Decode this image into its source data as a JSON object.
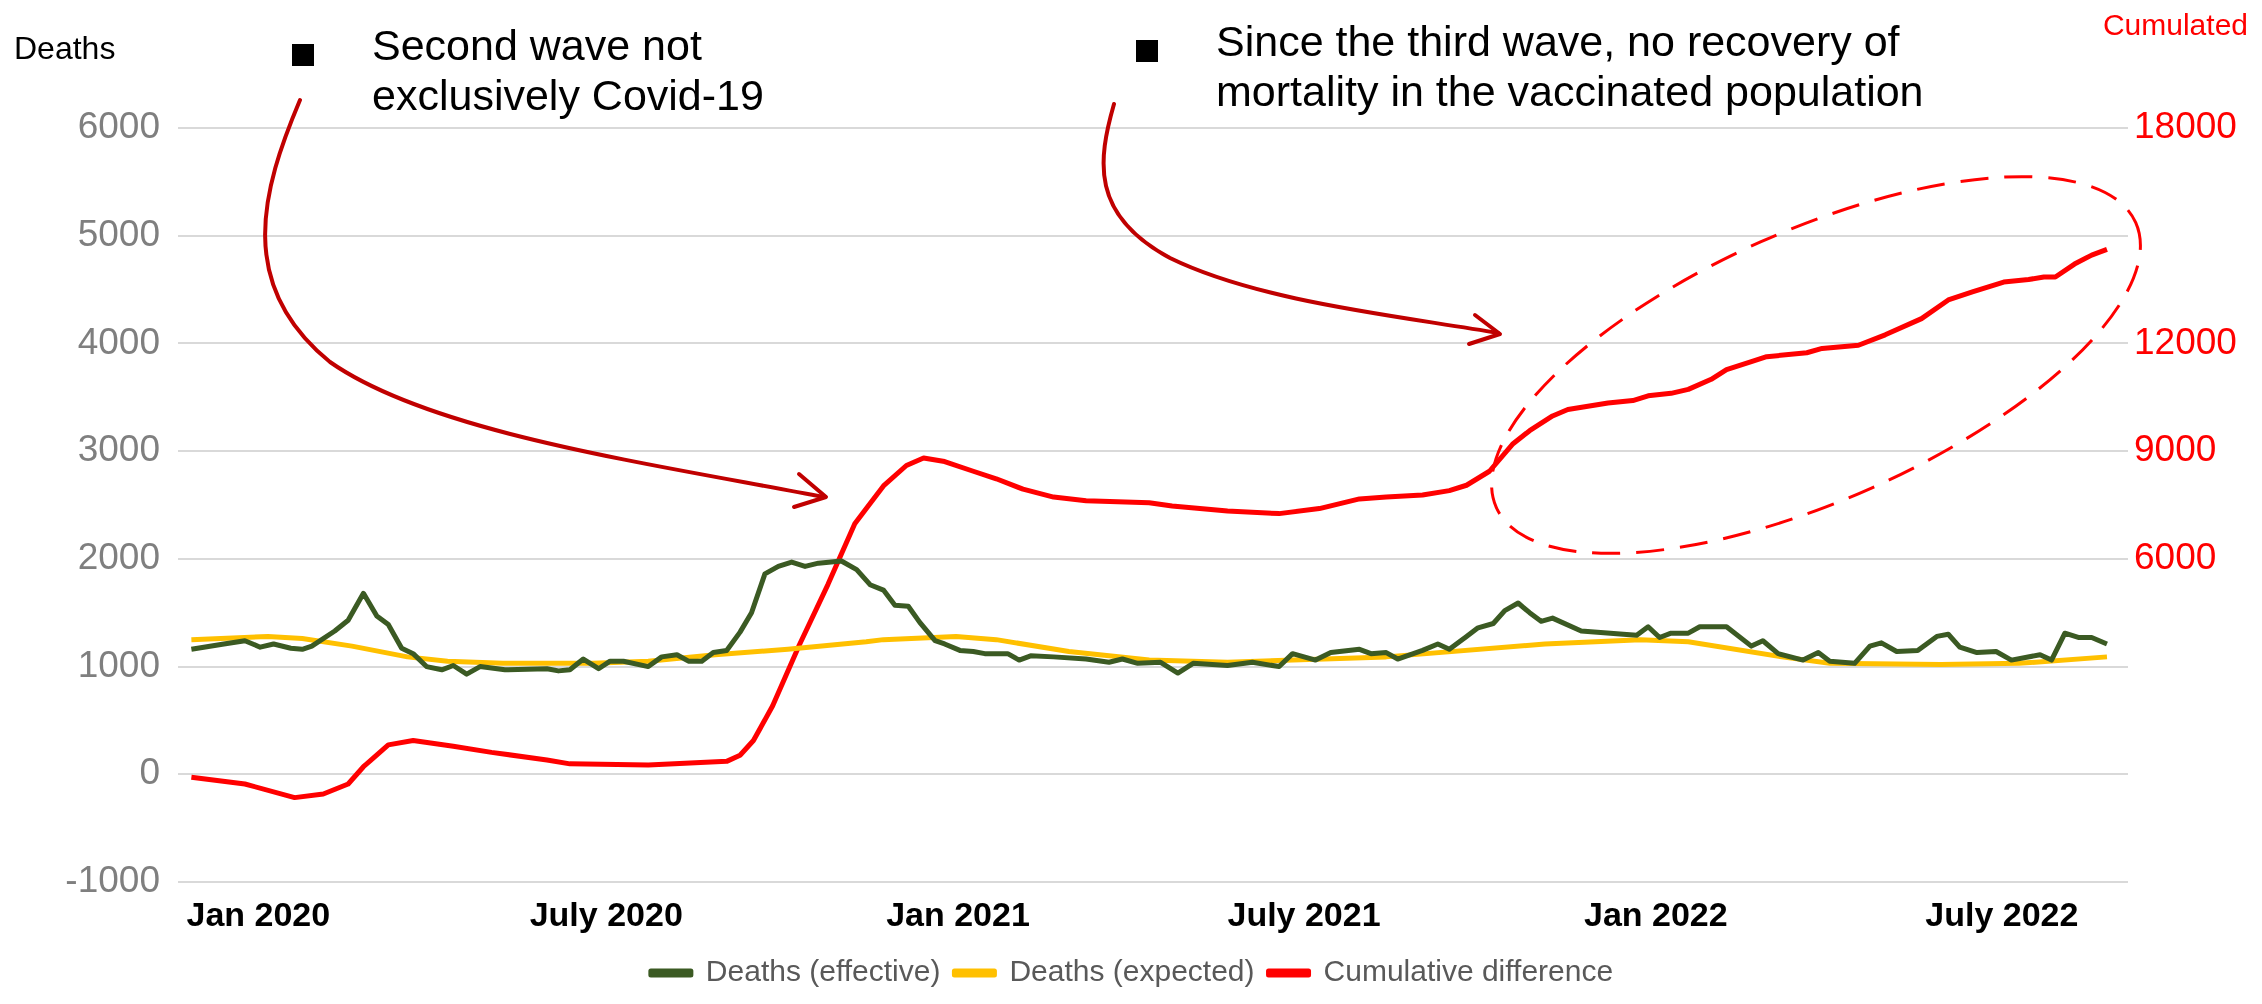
{
  "chart_data": {
    "type": "line",
    "ylabel": "Deaths",
    "y2label": "Cumulated",
    "xlim": [
      "2019-11-20",
      "2022-09-05"
    ],
    "xticks": [
      {
        "value": "2020-01-01",
        "label": "Jan 2020"
      },
      {
        "value": "2020-07-01",
        "label": "July 2020"
      },
      {
        "value": "2021-01-01",
        "label": "Jan 2021"
      },
      {
        "value": "2021-07-01",
        "label": "July 2021"
      },
      {
        "value": "2022-01-01",
        "label": "Jan 2022"
      },
      {
        "value": "2022-07-01",
        "label": "July 2022"
      }
    ],
    "ylim": [
      -1000,
      6000
    ],
    "yticks": [
      -1000,
      0,
      1000,
      2000,
      3000,
      4000,
      5000,
      6000
    ],
    "y2lim": [
      -3000,
      18000
    ],
    "y2ticks": [
      6000,
      9000,
      12000,
      18000
    ],
    "grid": "y",
    "legend": "bottom",
    "marker": "none",
    "annotations": [
      "Second wave not exclusively Covid-19",
      "Since the third wave, no recovery of mortality in the vaccinated population"
    ],
    "series": [
      {
        "name": "Deaths (effective)",
        "color": "#3b5a23",
        "x": [
          "2019-11-27",
          "2019-12-14",
          "2019-12-25",
          "2020-01-02",
          "2020-01-09",
          "2020-01-18",
          "2020-01-24",
          "2020-01-29",
          "2020-02-10",
          "2020-02-17",
          "2020-02-25",
          "2020-03-03",
          "2020-03-09",
          "2020-03-16",
          "2020-03-22",
          "2020-03-29",
          "2020-04-06",
          "2020-04-12",
          "2020-04-19",
          "2020-04-26",
          "2020-05-09",
          "2020-05-31",
          "2020-06-06",
          "2020-06-12",
          "2020-06-19",
          "2020-06-27",
          "2020-07-03",
          "2020-07-10",
          "2020-07-23",
          "2020-07-30",
          "2020-08-07",
          "2020-08-13",
          "2020-08-20",
          "2020-08-26",
          "2020-09-02",
          "2020-09-09",
          "2020-09-15",
          "2020-09-22",
          "2020-09-29",
          "2020-10-06",
          "2020-10-13",
          "2020-10-20",
          "2020-11-01",
          "2020-11-09",
          "2020-11-16",
          "2020-11-23",
          "2020-11-29",
          "2020-12-06",
          "2020-12-12",
          "2020-12-20",
          "2020-12-25",
          "2021-01-02",
          "2021-01-09",
          "2021-01-15",
          "2021-01-18",
          "2021-01-27",
          "2021-02-02",
          "2021-02-08",
          "2021-02-20",
          "2021-03-09",
          "2021-03-21",
          "2021-03-28",
          "2021-04-05",
          "2021-04-17",
          "2021-04-26",
          "2021-05-04",
          "2021-05-22",
          "2021-06-04",
          "2021-06-18",
          "2021-06-25",
          "2021-07-07",
          "2021-07-15",
          "2021-07-30",
          "2021-08-05",
          "2021-08-13",
          "2021-08-19",
          "2021-09-01",
          "2021-09-09",
          "2021-09-15",
          "2021-09-24",
          "2021-09-30",
          "2021-10-08",
          "2021-10-14",
          "2021-10-21",
          "2021-10-27",
          "2021-11-02",
          "2021-11-08",
          "2021-11-23",
          "2021-12-15",
          "2021-12-22",
          "2021-12-28",
          "2022-01-03",
          "2022-01-09",
          "2022-01-18",
          "2022-01-24",
          "2022-02-07",
          "2022-02-20",
          "2022-02-26",
          "2022-03-06",
          "2022-03-19",
          "2022-03-27",
          "2022-04-02",
          "2022-04-15",
          "2022-04-23",
          "2022-04-29",
          "2022-05-07",
          "2022-05-18",
          "2022-05-28",
          "2022-06-03",
          "2022-06-09",
          "2022-06-18",
          "2022-06-28",
          "2022-07-06",
          "2022-07-21",
          "2022-07-27",
          "2022-08-03",
          "2022-08-10",
          "2022-08-17",
          "2022-08-25"
        ],
        "values": [
          1160,
          1210,
          1240,
          1180,
          1210,
          1170,
          1160,
          1190,
          1330,
          1430,
          1680,
          1470,
          1390,
          1170,
          1120,
          1000,
          970,
          1010,
          930,
          1000,
          970,
          980,
          960,
          970,
          1070,
          980,
          1050,
          1050,
          1000,
          1090,
          1110,
          1050,
          1050,
          1130,
          1150,
          1320,
          1500,
          1860,
          1930,
          1970,
          1930,
          1960,
          1980,
          1900,
          1760,
          1710,
          1570,
          1560,
          1410,
          1240,
          1210,
          1150,
          1140,
          1120,
          1120,
          1120,
          1060,
          1100,
          1090,
          1070,
          1040,
          1070,
          1030,
          1040,
          940,
          1030,
          1010,
          1040,
          1000,
          1120,
          1060,
          1130,
          1160,
          1120,
          1130,
          1070,
          1150,
          1210,
          1160,
          1280,
          1360,
          1400,
          1520,
          1590,
          1500,
          1420,
          1450,
          1330,
          1300,
          1290,
          1370,
          1270,
          1310,
          1310,
          1370,
          1370,
          1190,
          1240,
          1120,
          1060,
          1130,
          1050,
          1030,
          1190,
          1220,
          1140,
          1150,
          1280,
          1300,
          1180,
          1130,
          1140,
          1060,
          1110,
          1060,
          1310,
          1270,
          1270,
          1210
        ]
      },
      {
        "name": "Deaths (expected)",
        "color": "#ffc000",
        "x": [
          "2019-11-27",
          "2020-01-06",
          "2020-01-24",
          "2020-02-19",
          "2020-03-19",
          "2020-04-09",
          "2020-05-08",
          "2020-06-24",
          "2020-07-23",
          "2020-08-27",
          "2020-10-04",
          "2020-11-14",
          "2020-11-23",
          "2020-12-31",
          "2021-01-21",
          "2021-02-28",
          "2021-04-11",
          "2021-05-22",
          "2021-08-13",
          "2021-11-04",
          "2021-12-24",
          "2022-01-18",
          "2022-03-08",
          "2022-04-02",
          "2022-05-30",
          "2022-07-10",
          "2022-08-25"
        ],
        "values": [
          1250,
          1280,
          1260,
          1190,
          1090,
          1050,
          1030,
          1030,
          1050,
          1110,
          1160,
          1230,
          1250,
          1280,
          1250,
          1140,
          1060,
          1040,
          1090,
          1210,
          1250,
          1230,
          1090,
          1030,
          1020,
          1030,
          1090
        ]
      },
      {
        "name": "Cumulative difference",
        "color": "#ff0000",
        "axis": "y2",
        "x": [
          "2019-11-27",
          "2019-12-25",
          "2020-01-20",
          "2020-02-04",
          "2020-02-17",
          "2020-02-25",
          "2020-03-09",
          "2020-03-22",
          "2020-04-12",
          "2020-05-02",
          "2020-05-31",
          "2020-06-12",
          "2020-07-23",
          "2020-09-02",
          "2020-09-09",
          "2020-09-16",
          "2020-09-26",
          "2020-10-10",
          "2020-10-25",
          "2020-11-08",
          "2020-11-23",
          "2020-12-05",
          "2020-12-14",
          "2020-12-25",
          "2021-01-09",
          "2021-01-21",
          "2021-02-04",
          "2021-02-20",
          "2021-03-09",
          "2021-04-11",
          "2021-04-23",
          "2021-05-22",
          "2021-06-18",
          "2021-07-09",
          "2021-07-30",
          "2021-08-13",
          "2021-09-01",
          "2021-09-15",
          "2021-09-24",
          "2021-10-06",
          "2021-10-18",
          "2021-10-27",
          "2021-11-08",
          "2021-11-16",
          "2021-12-07",
          "2021-12-20",
          "2021-12-28",
          "2022-01-09",
          "2022-01-18",
          "2022-01-30",
          "2022-02-07",
          "2022-02-20",
          "2022-02-28",
          "2022-03-21",
          "2022-03-29",
          "2022-04-17",
          "2022-05-01",
          "2022-05-20",
          "2022-06-03",
          "2022-06-16",
          "2022-07-02",
          "2022-07-15",
          "2022-07-23",
          "2022-07-29",
          "2022-08-08",
          "2022-08-17",
          "2022-08-25"
        ],
        "values": [
          -80,
          -270,
          -650,
          -550,
          -270,
          210,
          820,
          940,
          780,
          610,
          400,
          290,
          260,
          360,
          530,
          940,
          1900,
          3600,
          5290,
          6980,
          8030,
          8600,
          8810,
          8710,
          8440,
          8230,
          7940,
          7720,
          7620,
          7560,
          7470,
          7330,
          7260,
          7400,
          7670,
          7720,
          7780,
          7900,
          8050,
          8440,
          9190,
          9570,
          9980,
          10160,
          10340,
          10410,
          10540,
          10610,
          10720,
          11000,
          11270,
          11490,
          11630,
          11740,
          11860,
          11950,
          12240,
          12690,
          13210,
          13440,
          13710,
          13780,
          13850,
          13850,
          14210,
          14460,
          14620
        ]
      }
    ]
  }
}
